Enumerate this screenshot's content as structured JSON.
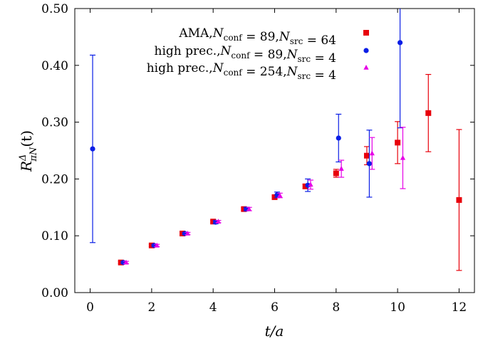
{
  "chart_data": {
    "type": "scatter",
    "xlabel": "t/a",
    "ylabel": "R^Δ_{πN}(t)",
    "xlim": [
      -0.5,
      12.5
    ],
    "ylim": [
      0.0,
      0.5
    ],
    "x_ticks": [
      "0",
      "2",
      "4",
      "6",
      "8",
      "10",
      "12"
    ],
    "y_ticks": [
      "0.00",
      "0.10",
      "0.20",
      "0.30",
      "0.40",
      "0.50"
    ],
    "grid": false,
    "legend_position": "top-right",
    "series": [
      {
        "name": "AMA, N_conf = 89, N_src = 64",
        "legend_parts": [
          [
            "AMA, ",
            "N"
          ],
          [
            "conf",
            "sub"
          ],
          [
            " = 89, ",
            "N"
          ],
          [
            "src",
            "sub"
          ],
          [
            " = 64",
            "n"
          ]
        ],
        "color": "#e8000b",
        "marker": "square",
        "offset": 0,
        "points": [
          {
            "x": 1,
            "y": 0.053,
            "err": 0.002
          },
          {
            "x": 2,
            "y": 0.083,
            "err": 0.002
          },
          {
            "x": 3,
            "y": 0.104,
            "err": 0.002
          },
          {
            "x": 4,
            "y": 0.125,
            "err": 0.002
          },
          {
            "x": 5,
            "y": 0.147,
            "err": 0.002
          },
          {
            "x": 6,
            "y": 0.168,
            "err": 0.003
          },
          {
            "x": 7,
            "y": 0.187,
            "err": 0.004
          },
          {
            "x": 8,
            "y": 0.21,
            "err": 0.007
          },
          {
            "x": 9,
            "y": 0.241,
            "err": 0.016
          },
          {
            "x": 10,
            "y": 0.264,
            "err": 0.037
          },
          {
            "x": 11,
            "y": 0.316,
            "err": 0.068
          },
          {
            "x": 12,
            "y": 0.163,
            "err": 0.124
          }
        ]
      },
      {
        "name": "high prec., N_conf = 89, N_src = 4",
        "legend_parts": [
          [
            "high prec., ",
            "N"
          ],
          [
            "conf",
            "sub"
          ],
          [
            " = 89, ",
            "N"
          ],
          [
            "src",
            "sub"
          ],
          [
            " = 4",
            "n"
          ]
        ],
        "color": "#0a1ee6",
        "marker": "circle",
        "offset": 0.08,
        "points": [
          {
            "x": 0,
            "y": 0.253,
            "err": 0.165
          },
          {
            "x": 1,
            "y": 0.053,
            "err": 0.002
          },
          {
            "x": 2,
            "y": 0.083,
            "err": 0.002
          },
          {
            "x": 3,
            "y": 0.104,
            "err": 0.002
          },
          {
            "x": 4,
            "y": 0.124,
            "err": 0.003
          },
          {
            "x": 5,
            "y": 0.147,
            "err": 0.003
          },
          {
            "x": 6,
            "y": 0.172,
            "err": 0.005
          },
          {
            "x": 7,
            "y": 0.189,
            "err": 0.011
          },
          {
            "x": 8,
            "y": 0.272,
            "err": 0.042
          },
          {
            "x": 9,
            "y": 0.227,
            "err": 0.059
          },
          {
            "x": 10,
            "y": 0.44,
            "err": 0.15
          }
        ]
      },
      {
        "name": "high prec., N_conf = 254, N_src = 4",
        "legend_parts": [
          [
            "high prec., ",
            "N"
          ],
          [
            "conf",
            "sub"
          ],
          [
            " = 254, ",
            "N"
          ],
          [
            "src",
            "sub"
          ],
          [
            " = 4",
            "n"
          ]
        ],
        "color": "#e600e6",
        "marker": "triangle",
        "offset": 0.17,
        "points": [
          {
            "x": 1,
            "y": 0.053,
            "err": 0.002
          },
          {
            "x": 2,
            "y": 0.083,
            "err": 0.002
          },
          {
            "x": 3,
            "y": 0.104,
            "err": 0.002
          },
          {
            "x": 4,
            "y": 0.125,
            "err": 0.002
          },
          {
            "x": 5,
            "y": 0.147,
            "err": 0.003
          },
          {
            "x": 6,
            "y": 0.171,
            "err": 0.004
          },
          {
            "x": 7,
            "y": 0.19,
            "err": 0.008
          },
          {
            "x": 8,
            "y": 0.218,
            "err": 0.015
          },
          {
            "x": 9,
            "y": 0.245,
            "err": 0.028
          },
          {
            "x": 10,
            "y": 0.237,
            "err": 0.054
          }
        ]
      }
    ]
  }
}
